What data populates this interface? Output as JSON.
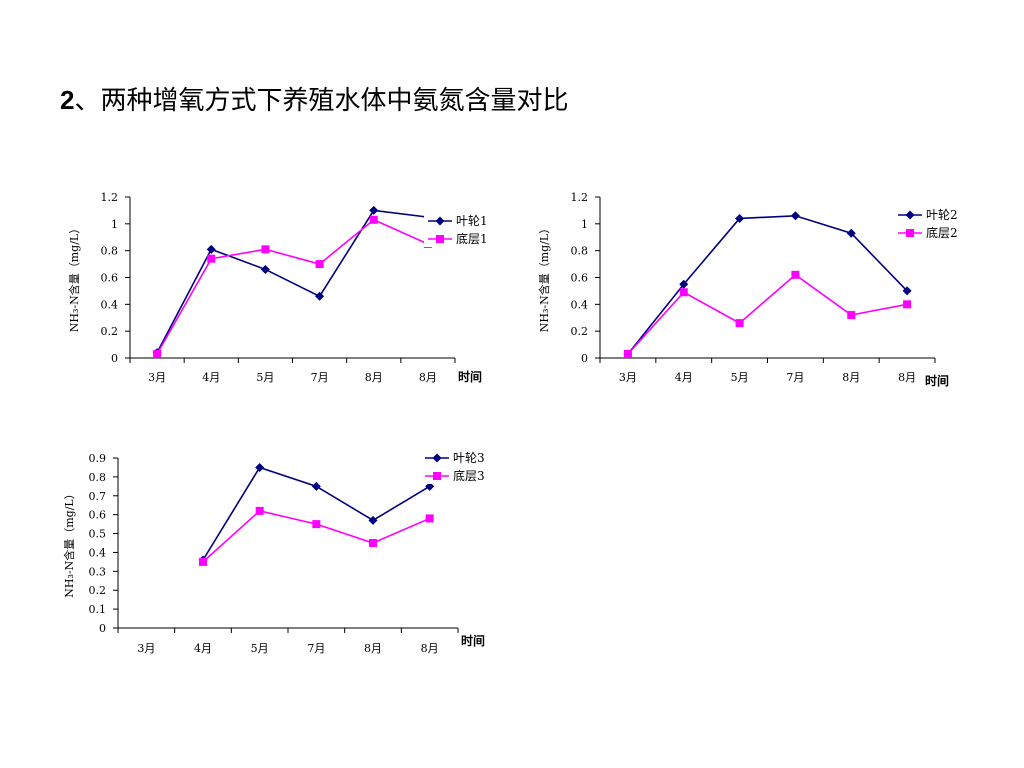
{
  "slide": {
    "title_num": "2",
    "title_text": "、两种增氧方式下养殖水体中氨氮含量对比"
  },
  "chart_data": [
    {
      "type": "line",
      "categories": [
        "3月",
        "4月",
        "5月",
        "7月",
        "8月",
        "8月"
      ],
      "xlabel": "时间",
      "ylabel": "NH₃-N含量（mg/L）",
      "ylim": [
        0,
        1.2
      ],
      "yticks": [
        0,
        0.2,
        0.4,
        0.6,
        0.8,
        1,
        1.2
      ],
      "ytick_labels": [
        "0",
        "0.2",
        "0.4",
        "0.6",
        "0.8",
        "1",
        "1.2"
      ],
      "legend_position": "top-right",
      "series": [
        {
          "name": "叶轮1",
          "marker": "diamond",
          "color": "#000080",
          "values": [
            0.04,
            0.81,
            0.66,
            0.46,
            1.1,
            1.05
          ]
        },
        {
          "name": "底层1",
          "marker": "square",
          "color": "#FF00FF",
          "values": [
            0.03,
            0.74,
            0.81,
            0.7,
            1.03,
            0.85
          ]
        }
      ]
    },
    {
      "type": "line",
      "categories": [
        "3月",
        "4月",
        "5月",
        "7月",
        "8月",
        "8月"
      ],
      "xlabel": "时间",
      "ylabel": "NH₃-N含量（mg/L）",
      "ylim": [
        0,
        1.2
      ],
      "yticks": [
        0,
        0.2,
        0.4,
        0.6,
        0.8,
        1,
        1.2
      ],
      "ytick_labels": [
        "0",
        "0.2",
        "0.4",
        "0.6",
        "0.8",
        "1",
        "1.2"
      ],
      "legend_position": "top-right",
      "series": [
        {
          "name": "叶轮2",
          "marker": "diamond",
          "color": "#000080",
          "values": [
            0.03,
            0.55,
            1.04,
            1.06,
            0.93,
            0.5
          ]
        },
        {
          "name": "底层2",
          "marker": "square",
          "color": "#FF00FF",
          "values": [
            0.03,
            0.49,
            0.26,
            0.62,
            0.32,
            0.4
          ]
        }
      ]
    },
    {
      "type": "line",
      "categories": [
        "3月",
        "4月",
        "5月",
        "7月",
        "8月",
        "8月"
      ],
      "xlabel": "时间",
      "ylabel": "NH₃-N含量（mg/L）",
      "ylim": [
        0,
        0.9
      ],
      "yticks": [
        0,
        0.1,
        0.2,
        0.3,
        0.4,
        0.5,
        0.6,
        0.7,
        0.8,
        0.9
      ],
      "ytick_labels": [
        "0",
        "0.1",
        "0.2",
        "0.3",
        "0.4",
        "0.5",
        "0.6",
        "0.7",
        "0.8",
        "0.9"
      ],
      "legend_position": "top-right",
      "series": [
        {
          "name": "叶轮3",
          "marker": "diamond",
          "color": "#000080",
          "values": [
            null,
            0.36,
            0.85,
            0.75,
            0.57,
            0.75
          ]
        },
        {
          "name": "底层3",
          "marker": "square",
          "color": "#FF00FF",
          "values": [
            null,
            0.35,
            0.62,
            0.55,
            0.45,
            0.58
          ]
        }
      ]
    }
  ]
}
